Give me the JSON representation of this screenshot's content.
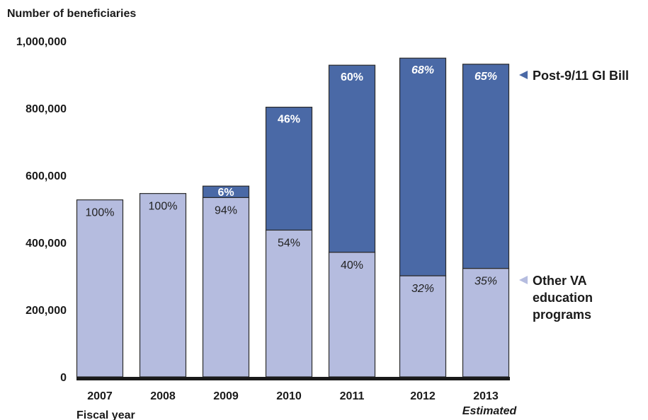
{
  "chart_data": {
    "type": "bar",
    "stacked": true,
    "title": "",
    "ylabel": "Number of beneficiaries",
    "xlabel": "Fiscal year",
    "ylim": [
      0,
      1000000
    ],
    "yticks": [
      0,
      200000,
      400000,
      600000,
      800000,
      1000000
    ],
    "ytick_labels": [
      "0",
      "200,000",
      "400,000",
      "600,000",
      "800,000",
      "1,000,000"
    ],
    "categories": [
      "2007",
      "2008",
      "2009",
      "2010",
      "2011",
      "2012",
      "2013"
    ],
    "category_notes": {
      "2013": "Estimated"
    },
    "series": [
      {
        "name": "Other VA education programs",
        "color": "#b5bcdf",
        "values": [
          527000,
          546000,
          534000,
          437000,
          371000,
          301000,
          323000
        ],
        "labels": [
          "100%",
          "100%",
          "94%",
          "54%",
          "40%",
          "32%",
          "35%"
        ],
        "italic_labels": [
          false,
          false,
          false,
          false,
          false,
          true,
          true
        ]
      },
      {
        "name": "Post-9/11 GI Bill",
        "color": "#4a69a6",
        "values": [
          0,
          0,
          34000,
          366000,
          557000,
          648000,
          608000
        ],
        "labels": [
          "",
          "",
          "6%",
          "46%",
          "60%",
          "68%",
          "65%"
        ],
        "italic_labels": [
          false,
          false,
          false,
          false,
          false,
          true,
          true
        ]
      }
    ],
    "legend": "right",
    "grid": false
  }
}
